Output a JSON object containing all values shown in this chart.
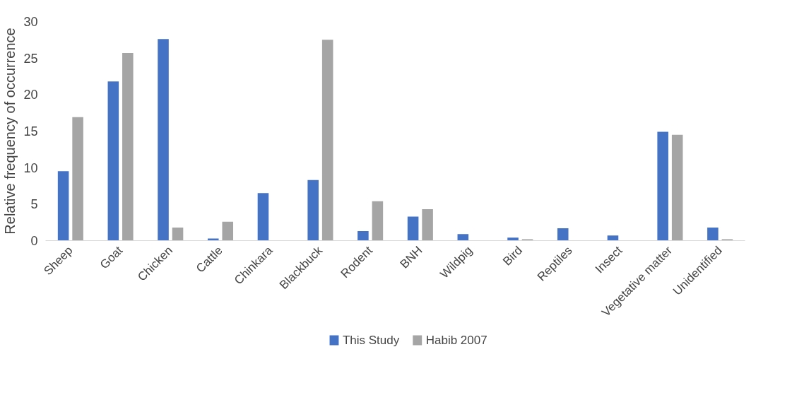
{
  "chart_data": {
    "type": "bar",
    "ylabel": "Relative frequency of occurrence",
    "categories": [
      "Sheep",
      "Goat",
      "Chicken",
      "Cattle",
      "Chinkara",
      "Blackbuck",
      "Rodent",
      "BNH",
      "Wildpig",
      "Bird",
      "Reptiles",
      "Insect",
      "Vegetative matter",
      "Unidentified"
    ],
    "series": [
      {
        "name": "This Study",
        "color": "#4472c4",
        "values": [
          9.5,
          21.8,
          27.6,
          0.3,
          6.5,
          8.3,
          1.3,
          3.3,
          0.9,
          0.4,
          1.7,
          0.7,
          14.9,
          1.8
        ]
      },
      {
        "name": "Habib 2007",
        "color": "#a5a5a5",
        "values": [
          16.9,
          25.7,
          1.8,
          2.6,
          null,
          27.5,
          5.4,
          4.3,
          null,
          0.2,
          null,
          null,
          14.5,
          0.2
        ]
      }
    ],
    "ylim": [
      0,
      30
    ],
    "yticks": [
      0,
      5,
      10,
      15,
      20,
      25,
      30
    ],
    "grid": false,
    "legend": "bottom"
  }
}
